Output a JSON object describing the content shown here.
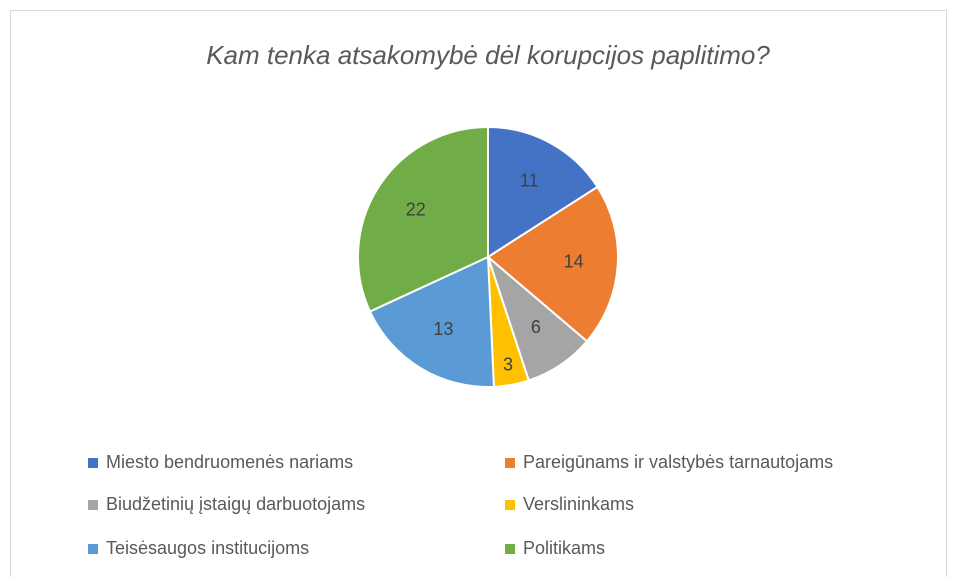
{
  "chart_data": {
    "type": "pie",
    "title": "Kam tenka atsakomybė dėl korupcijos paplitimo?",
    "categories": [
      "Miesto bendruomenės nariams",
      "Pareigūnams  ir valstybės tarnautojams",
      "Biudžetinių įstaigų darbuotojams",
      "Verslininkams",
      "Teisėsaugos institucijoms",
      "Politikams"
    ],
    "values": [
      11,
      14,
      6,
      3,
      13,
      22
    ],
    "colors": [
      "#4472c4",
      "#ed7d31",
      "#a5a5a5",
      "#ffc000",
      "#5b9bd5",
      "#70ad47"
    ],
    "legend": "bottom"
  }
}
